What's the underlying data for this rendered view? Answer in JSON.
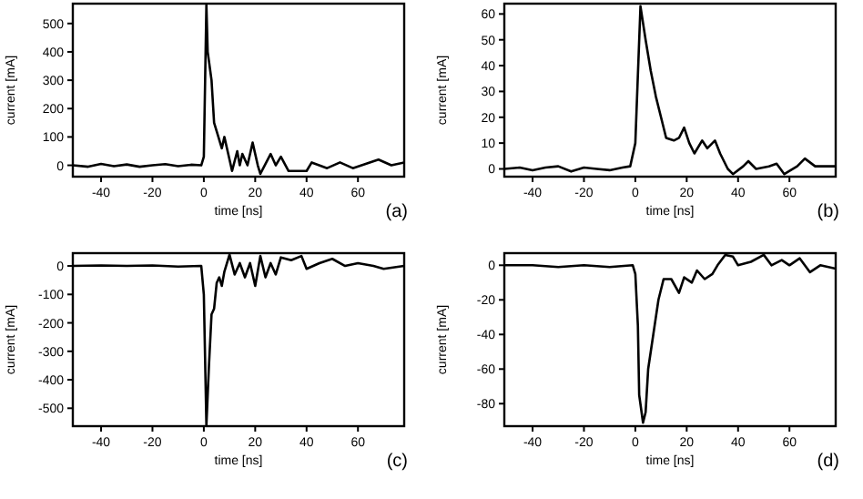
{
  "chart_data": [
    {
      "type": "line",
      "xlabel": "time [ns]",
      "ylabel": "current [mA]",
      "annotations": [
        "(a)"
      ],
      "xlim": [
        -51,
        78
      ],
      "ylim": [
        -40,
        570
      ],
      "xticks": [
        -40,
        -20,
        0,
        20,
        40,
        60
      ],
      "yticks": [
        0,
        100,
        200,
        300,
        400,
        500
      ],
      "grid": false,
      "marker": "none",
      "line_style": "solid",
      "series": [
        {
          "color": "#000000",
          "x": [
            -51,
            -45,
            -40,
            -35,
            -30,
            -25,
            -20,
            -15,
            -10,
            -5,
            -1,
            0,
            1,
            1.5,
            3,
            4,
            5,
            7,
            8,
            10,
            11,
            13,
            14,
            15,
            17,
            19,
            21,
            22,
            26,
            28,
            30,
            33,
            40,
            42,
            48,
            53,
            58,
            68,
            73,
            78
          ],
          "values": [
            0,
            -5,
            5,
            -3,
            3,
            -5,
            0,
            4,
            -3,
            2,
            0,
            30,
            565,
            400,
            300,
            150,
            120,
            60,
            100,
            20,
            -20,
            50,
            0,
            40,
            0,
            80,
            0,
            -30,
            40,
            0,
            30,
            -20,
            -20,
            10,
            -10,
            10,
            -10,
            20,
            0,
            10
          ]
        }
      ]
    },
    {
      "type": "line",
      "xlabel": "time [ns]",
      "ylabel": "current [mA]",
      "annotations": [
        "(b)"
      ],
      "xlim": [
        -51,
        78
      ],
      "ylim": [
        -3,
        64
      ],
      "xticks": [
        -40,
        -20,
        0,
        20,
        40,
        60
      ],
      "yticks": [
        0,
        10,
        20,
        30,
        40,
        50,
        60
      ],
      "grid": false,
      "marker": "none",
      "line_style": "solid",
      "series": [
        {
          "color": "#000000",
          "x": [
            -51,
            -45,
            -40,
            -35,
            -30,
            -25,
            -20,
            -15,
            -10,
            -5,
            -2,
            0,
            2,
            4,
            6,
            8,
            10,
            12,
            15,
            17,
            19,
            21,
            23,
            26,
            28,
            31,
            33,
            36,
            38,
            42,
            44,
            47,
            52,
            55,
            58,
            63,
            66,
            70,
            78
          ],
          "values": [
            0,
            0.5,
            -0.5,
            0.5,
            1,
            -1,
            0.5,
            0,
            -0.5,
            0.5,
            1,
            10,
            63,
            50,
            38,
            28,
            20,
            12,
            11,
            12,
            16,
            10,
            6,
            11,
            8,
            11,
            6,
            0,
            -2,
            1,
            3,
            0,
            1,
            2,
            -2,
            1,
            4,
            1,
            1
          ]
        }
      ]
    },
    {
      "type": "line",
      "xlabel": "time [ns]",
      "ylabel": "current [mA]",
      "annotations": [
        "(c)"
      ],
      "xlim": [
        -51,
        78
      ],
      "ylim": [
        -563,
        45
      ],
      "xticks": [
        -40,
        -20,
        0,
        20,
        40,
        60
      ],
      "yticks": [
        -500,
        -400,
        -300,
        -200,
        -100,
        0
      ],
      "grid": false,
      "marker": "none",
      "line_style": "solid",
      "series": [
        {
          "color": "#000000",
          "x": [
            -51,
            -40,
            -30,
            -20,
            -10,
            -1,
            0,
            1,
            2,
            3,
            4,
            5,
            6,
            7,
            8,
            10,
            12,
            14,
            16,
            18,
            20,
            22,
            24,
            26,
            28,
            30,
            34,
            38,
            40,
            45,
            50,
            55,
            60,
            66,
            70,
            78
          ],
          "values": [
            0,
            2,
            0,
            2,
            -2,
            0,
            -100,
            -560,
            -350,
            -170,
            -150,
            -60,
            -40,
            -70,
            -20,
            40,
            -30,
            10,
            -40,
            10,
            -70,
            35,
            -40,
            10,
            -30,
            30,
            20,
            35,
            -10,
            10,
            25,
            0,
            10,
            0,
            -10,
            0
          ]
        }
      ]
    },
    {
      "type": "line",
      "xlabel": "time [ns]",
      "ylabel": "current [mA]",
      "annotations": [
        "(d)"
      ],
      "xlim": [
        -51,
        78
      ],
      "ylim": [
        -93,
        7
      ],
      "xticks": [
        -40,
        -20,
        0,
        20,
        40,
        60
      ],
      "yticks": [
        -80,
        -60,
        -40,
        -20,
        0
      ],
      "grid": false,
      "marker": "none",
      "line_style": "solid",
      "series": [
        {
          "color": "#000000",
          "x": [
            -51,
            -40,
            -30,
            -20,
            -10,
            -1,
            0,
            1,
            1.5,
            3,
            4,
            5,
            7,
            9,
            11,
            14,
            17,
            19,
            22,
            24,
            27,
            30,
            32,
            35,
            38,
            40,
            45,
            50,
            53,
            57,
            60,
            64,
            68,
            72,
            78
          ],
          "values": [
            0,
            0,
            -1,
            0,
            -1,
            0,
            -5,
            -35,
            -75,
            -91,
            -85,
            -60,
            -40,
            -20,
            -8,
            -8,
            -16,
            -7,
            -10,
            -3,
            -8,
            -5,
            0,
            6,
            5,
            0,
            2,
            6,
            0,
            3,
            0,
            4,
            -4,
            0,
            -2
          ]
        }
      ]
    }
  ]
}
